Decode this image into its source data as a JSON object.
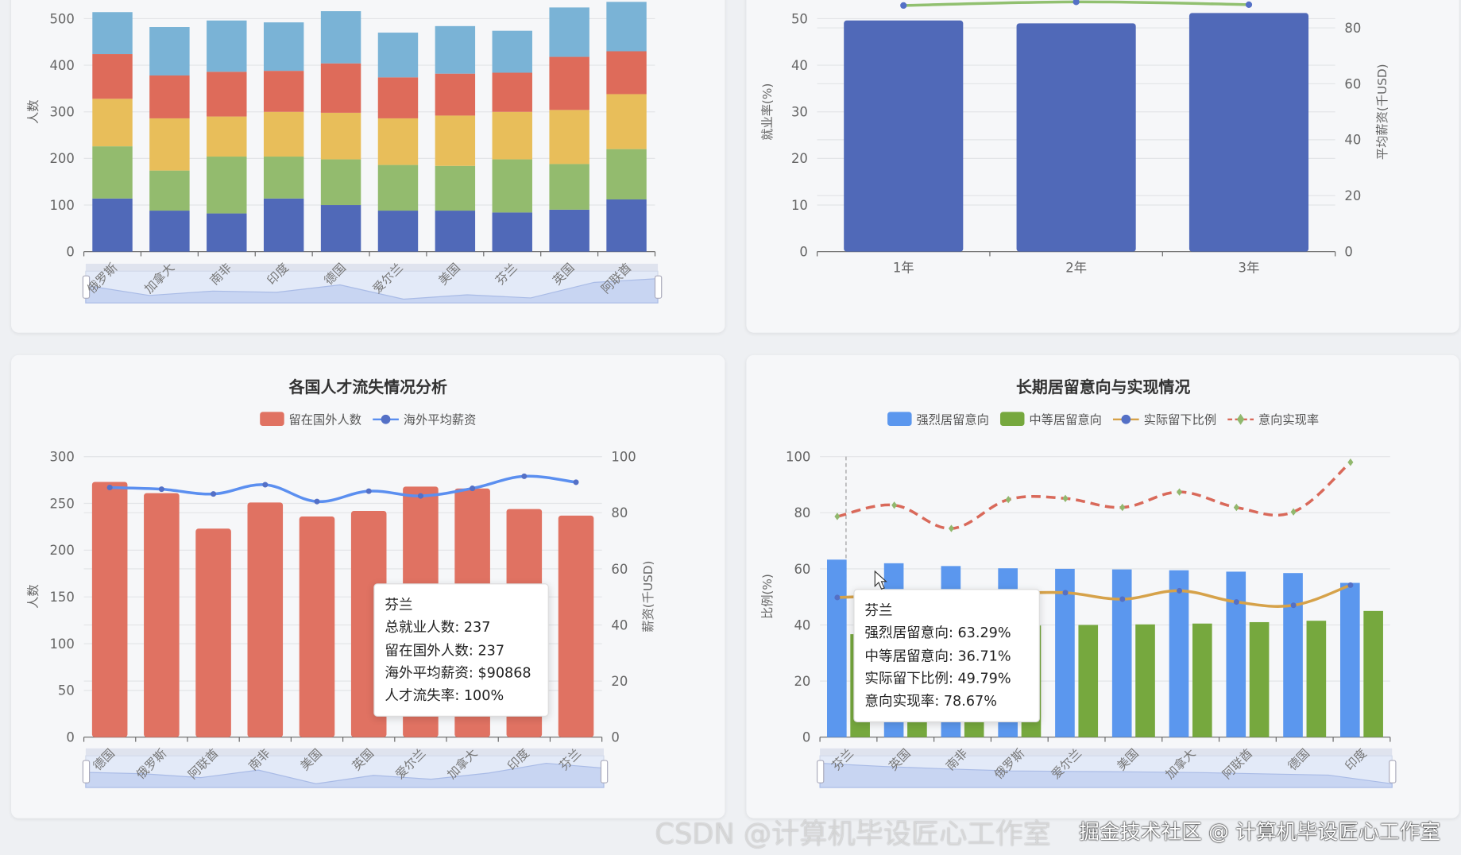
{
  "colors": {
    "blue": "#5069b8",
    "green": "#93bb6e",
    "yellow": "#e8be5a",
    "red": "#de6b5a",
    "lightblue": "#7ab3d6",
    "bar_red": "#e07262",
    "salary_line": "#5b8ff0",
    "strong": "#5b97ee",
    "medium": "#76a83e",
    "actual_line": "#d6a24a",
    "rate_line": "#d9695a",
    "rate_marker": "#91b86e",
    "dot": "#5470c6",
    "emp_line": "#91c070"
  },
  "chart_data": [
    {
      "type": "bar",
      "stacked": true,
      "ylabel": "人数",
      "ylim": [
        0,
        500
      ],
      "yticks": [
        0,
        100,
        200,
        300,
        400,
        500
      ],
      "categories": [
        "俄罗斯",
        "加拿大",
        "南非",
        "印度",
        "德国",
        "爱尔兰",
        "美国",
        "芬兰",
        "英国",
        "阿联酋"
      ],
      "series": [
        {
          "values": [
            114,
            88,
            82,
            114,
            100,
            88,
            88,
            84,
            90,
            112
          ],
          "color": "blue"
        },
        {
          "values": [
            112,
            86,
            122,
            90,
            98,
            98,
            96,
            114,
            98,
            108
          ],
          "color": "green"
        },
        {
          "values": [
            102,
            112,
            86,
            96,
            100,
            100,
            108,
            102,
            116,
            118
          ],
          "color": "yellow"
        },
        {
          "values": [
            96,
            92,
            96,
            88,
            106,
            88,
            90,
            84,
            114,
            92
          ],
          "color": "red"
        },
        {
          "values": [
            90,
            104,
            110,
            104,
            112,
            96,
            102,
            90,
            106,
            106
          ],
          "color": "lightblue"
        }
      ],
      "grid": true,
      "datazoom": true
    },
    {
      "type": "bar+line",
      "categories": [
        "1年",
        "2年",
        "3年"
      ],
      "ylabel": "就业率(%)",
      "ylim": [
        0,
        50
      ],
      "yticks": [
        0,
        10,
        20,
        30,
        40,
        50
      ],
      "y2label": "平均薪资(千USD)",
      "y2lim": [
        0,
        80
      ],
      "y2ticks": [
        0,
        20,
        40,
        60,
        80
      ],
      "bar_values": [
        49.6,
        49.0,
        51.2
      ],
      "line_values": [
        88.0,
        89.3,
        88.3
      ],
      "grid": true
    },
    {
      "type": "bar+line",
      "title": "各国人才流失情况分析",
      "legend": [
        "留在国外人数",
        "海外平均薪资"
      ],
      "legend_placement": "top",
      "categories": [
        "德国",
        "俄罗斯",
        "阿联酋",
        "南非",
        "美国",
        "英国",
        "爱尔兰",
        "加拿大",
        "印度",
        "芬兰"
      ],
      "ylabel": "人数",
      "ylim": [
        0,
        300
      ],
      "yticks": [
        0,
        50,
        100,
        150,
        200,
        250,
        300
      ],
      "y2label": "薪资(千USD)",
      "y2lim": [
        0,
        100
      ],
      "y2ticks": [
        0,
        20,
        40,
        60,
        80,
        100
      ],
      "bar_values": [
        273,
        261,
        223,
        251,
        236,
        242,
        268,
        266,
        244,
        237
      ],
      "line_values": [
        89.0,
        88.4,
        86.7,
        90.0,
        84.0,
        87.7,
        86.0,
        88.7,
        93.0,
        90.868
      ],
      "tooltip": {
        "title": "芬兰",
        "lines": [
          "总就业人数: 237",
          "留在国外人数: 237",
          "海外平均薪资: $90868",
          "人才流失率: 100%"
        ]
      },
      "grid": true,
      "datazoom": true
    },
    {
      "type": "bar+line",
      "title": "长期居留意向与实现情况",
      "legend": [
        "强烈居留意向",
        "中等居留意向",
        "实际留下比例",
        "意向实现率"
      ],
      "legend_placement": "top",
      "categories": [
        "芬兰",
        "英国",
        "南非",
        "俄罗斯",
        "爱尔兰",
        "美国",
        "加拿大",
        "阿联酋",
        "德国",
        "印度"
      ],
      "ylabel": "比例(%)",
      "ylim": [
        0,
        100
      ],
      "yticks": [
        0,
        20,
        40,
        60,
        80,
        100
      ],
      "strong": [
        63.29,
        62.0,
        61.0,
        60.2,
        60.0,
        59.8,
        59.5,
        59.0,
        58.5,
        55.0
      ],
      "medium": [
        36.71,
        38.0,
        39.0,
        39.8,
        40.0,
        40.2,
        40.5,
        41.0,
        41.5,
        45.0
      ],
      "actual": [
        49.79,
        50.5,
        51.0,
        51.2,
        51.5,
        49.2,
        52.2,
        48.2,
        47.0,
        54.2
      ],
      "rate": [
        78.67,
        82.7,
        74.4,
        84.7,
        85.1,
        81.9,
        87.4,
        81.9,
        80.3,
        98.0
      ],
      "tooltip": {
        "title": "芬兰",
        "lines": [
          "强烈居留意向: 63.29%",
          "中等居留意向: 36.71%",
          "实际留下比例: 49.79%",
          "意向实现率: 78.67%"
        ]
      },
      "grid": true,
      "datazoom": true
    }
  ],
  "watermark": {
    "primary": "掘金技术社区 @ 计算机毕设匠心工作室",
    "secondary": "CSDN @计算机毕设匠心工作室"
  }
}
